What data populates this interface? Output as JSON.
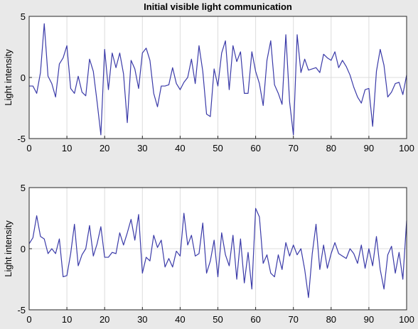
{
  "chart_data": [
    {
      "type": "line",
      "title": "Initial visible light communication",
      "xlabel": "",
      "ylabel": "Light intensity",
      "xlim": [
        0,
        100
      ],
      "ylim": [
        -5,
        5
      ],
      "xticks": [
        0,
        10,
        20,
        30,
        40,
        50,
        60,
        70,
        80,
        90,
        100
      ],
      "yticks": [
        -5,
        0,
        5
      ],
      "grid": true,
      "line_color": "#3a3aa8",
      "series": [
        {
          "x": [
            0,
            1,
            2,
            3,
            4,
            5,
            6,
            7,
            8,
            9,
            10,
            11,
            12,
            13,
            14,
            15,
            16,
            17,
            18,
            19,
            20,
            21,
            22,
            23,
            24,
            25,
            26,
            27,
            28,
            29,
            30,
            31,
            32,
            33,
            34,
            35,
            36,
            37,
            38,
            39,
            40,
            41,
            42,
            43,
            44,
            45,
            46,
            47,
            48,
            49,
            50,
            51,
            52,
            53,
            54,
            55,
            56,
            57,
            58,
            59,
            60,
            61,
            62,
            63,
            64,
            65,
            66,
            67,
            68,
            69,
            70,
            71,
            72,
            73,
            74,
            75,
            76,
            77,
            78,
            79,
            80,
            81,
            82,
            83,
            84,
            85,
            86,
            87,
            88,
            89,
            90,
            91,
            92,
            93,
            94,
            95,
            96,
            97,
            98,
            99,
            100
          ],
          "values": [
            -0.7,
            -0.7,
            -1.3,
            0.4,
            4.4,
            0.1,
            -0.5,
            -1.6,
            1.1,
            1.6,
            2.6,
            -0.9,
            -1.3,
            0.1,
            -1.2,
            -1.5,
            1.5,
            0.5,
            -2.0,
            -4.7,
            2.3,
            -1.0,
            2.0,
            0.8,
            2.0,
            0.3,
            -3.7,
            1.4,
            0.7,
            -0.9,
            2.0,
            2.4,
            1.4,
            -1.3,
            -2.4,
            -0.7,
            -0.7,
            -0.6,
            0.8,
            -0.5,
            -1.0,
            -0.4,
            0.0,
            1.5,
            -0.5,
            2.6,
            0.5,
            -3.0,
            -3.2,
            0.7,
            -0.7,
            2.0,
            3.0,
            -1.0,
            2.6,
            1.3,
            2.1,
            -1.3,
            -1.3,
            2.1,
            0.5,
            -0.5,
            -2.3,
            1.4,
            3.0,
            -0.6,
            -1.3,
            -2.2,
            3.5,
            -2.0,
            -4.7,
            3.5,
            0.4,
            1.5,
            0.6,
            0.7,
            0.8,
            0.4,
            1.9,
            1.6,
            1.4,
            2.1,
            0.8,
            1.4,
            0.9,
            0.2,
            -0.8,
            -1.6,
            -2.1,
            -1.0,
            -0.9,
            -4.0,
            0.5,
            2.3,
            1.0,
            -1.6,
            -1.2,
            -0.5,
            -0.4,
            -1.4,
            0.2
          ]
        }
      ]
    },
    {
      "type": "line",
      "title": "",
      "xlabel": "",
      "ylabel": "Light intensity",
      "xlim": [
        0,
        100
      ],
      "ylim": [
        -5,
        5
      ],
      "xticks": [
        0,
        10,
        20,
        30,
        40,
        50,
        60,
        70,
        80,
        90,
        100
      ],
      "yticks": [
        -5,
        0,
        5
      ],
      "grid": true,
      "line_color": "#3a3aa8",
      "series": [
        {
          "x": [
            0,
            1,
            2,
            3,
            4,
            5,
            6,
            7,
            8,
            9,
            10,
            11,
            12,
            13,
            14,
            15,
            16,
            17,
            18,
            19,
            20,
            21,
            22,
            23,
            24,
            25,
            26,
            27,
            28,
            29,
            30,
            31,
            32,
            33,
            34,
            35,
            36,
            37,
            38,
            39,
            40,
            41,
            42,
            43,
            44,
            45,
            46,
            47,
            48,
            49,
            50,
            51,
            52,
            53,
            54,
            55,
            56,
            57,
            58,
            59,
            60,
            61,
            62,
            63,
            64,
            65,
            66,
            67,
            68,
            69,
            70,
            71,
            72,
            73,
            74,
            75,
            76,
            77,
            78,
            79,
            80,
            81,
            82,
            83,
            84,
            85,
            86,
            87,
            88,
            89,
            90,
            91,
            92,
            93,
            94,
            95,
            96,
            97,
            98,
            99,
            100
          ],
          "values": [
            0.4,
            0.9,
            2.7,
            1.0,
            0.8,
            -0.4,
            0.0,
            -0.4,
            0.8,
            -2.3,
            -2.2,
            -0.4,
            2.0,
            -1.4,
            -0.5,
            0.0,
            1.9,
            -0.6,
            0.4,
            1.8,
            -0.7,
            -0.7,
            -0.3,
            -0.4,
            1.3,
            0.3,
            1.3,
            2.4,
            0.7,
            2.8,
            -2.0,
            -0.7,
            -1.0,
            1.1,
            0.1,
            0.7,
            -1.5,
            -0.8,
            -1.5,
            -0.2,
            -0.6,
            2.9,
            0.3,
            1.1,
            -0.6,
            -0.4,
            2.1,
            -2.0,
            -1.0,
            0.7,
            -2.3,
            1.3,
            -0.5,
            -1.4,
            1.1,
            -2.5,
            0.8,
            -2.8,
            -0.3,
            -3.3,
            3.3,
            2.6,
            -1.2,
            -0.5,
            -2.0,
            -2.3,
            -0.5,
            -1.7,
            0.5,
            -0.6,
            0.3,
            -0.5,
            0.0,
            -1.7,
            -4.0,
            -0.4,
            2.0,
            -1.7,
            0.3,
            -1.6,
            -0.4,
            0.5,
            -0.4,
            -0.6,
            -0.8,
            0.0,
            -0.4,
            -1.2,
            0.3,
            -1.6,
            0.0,
            -1.4,
            1.0,
            -1.7,
            -3.3,
            -0.5,
            0.2,
            -2.0,
            -0.3,
            -2.5,
            2.3
          ]
        }
      ]
    }
  ]
}
